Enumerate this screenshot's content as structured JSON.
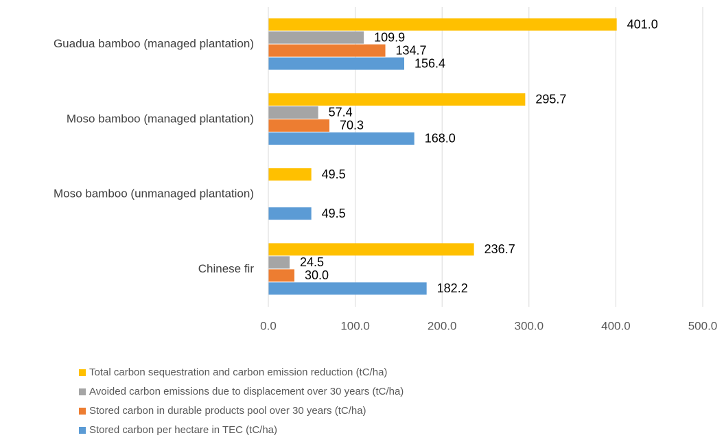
{
  "chart_data": {
    "type": "bar",
    "orientation": "horizontal",
    "categories": [
      "Guadua bamboo (managed plantation)",
      "Moso bamboo (managed plantation)",
      "Moso bamboo (unmanaged plantation)",
      "Chinese fir"
    ],
    "series": [
      {
        "name": "Total carbon sequestration and carbon emission reduction (tC/ha)",
        "color": "#ffc000",
        "values": [
          401.0,
          295.7,
          49.5,
          236.7
        ],
        "value_labels": [
          "401.0",
          "295.7",
          "49.5",
          "236.7"
        ]
      },
      {
        "name": "Avoided carbon emissions due to displacement over 30 years (tC/ha)",
        "color": "#a5a5a5",
        "values": [
          109.9,
          57.4,
          null,
          24.5
        ],
        "value_labels": [
          "109.9",
          "57.4",
          null,
          "24.5"
        ]
      },
      {
        "name": "Stored carbon in durable products pool over 30 years (tC/ha)",
        "color": "#ed7d31",
        "values": [
          134.7,
          70.3,
          null,
          30.0
        ],
        "value_labels": [
          "134.7",
          "70.3",
          null,
          "30.0"
        ]
      },
      {
        "name": "Stored carbon per hectare in TEC (tC/ha)",
        "color": "#5b9bd5",
        "values": [
          156.4,
          168.0,
          49.5,
          182.2
        ],
        "value_labels": [
          "156.4",
          "168.0",
          "49.5",
          "182.2"
        ]
      }
    ],
    "xlim": [
      0,
      500
    ],
    "xticks": [
      {
        "value": 0,
        "label": "0.0"
      },
      {
        "value": 100,
        "label": "100.0"
      },
      {
        "value": 200,
        "label": "200.0"
      },
      {
        "value": 300,
        "label": "300.0"
      },
      {
        "value": 400,
        "label": "400.0"
      },
      {
        "value": 500,
        "label": "500.0"
      }
    ],
    "grid": true,
    "legend": "bottom"
  }
}
